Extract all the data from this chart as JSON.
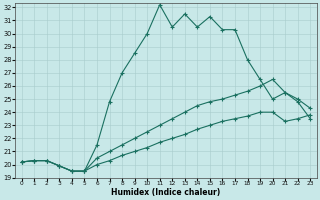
{
  "xlabel": "Humidex (Indice chaleur)",
  "bg_color": "#c8e8e8",
  "line_color": "#1a7060",
  "xlim": [
    -0.5,
    23.5
  ],
  "ylim": [
    19,
    32.3
  ],
  "xticks": [
    0,
    1,
    2,
    3,
    4,
    5,
    6,
    7,
    8,
    9,
    10,
    11,
    12,
    13,
    14,
    15,
    16,
    17,
    18,
    19,
    20,
    21,
    22,
    23
  ],
  "yticks": [
    19,
    20,
    21,
    22,
    23,
    24,
    25,
    26,
    27,
    28,
    29,
    30,
    31,
    32
  ],
  "line1_x": [
    0,
    1,
    2,
    3,
    4,
    5,
    6,
    7,
    8,
    9,
    10,
    11,
    12,
    13,
    14,
    15,
    16,
    17,
    18,
    19,
    20,
    21,
    22,
    23
  ],
  "line1_y": [
    20.2,
    20.3,
    20.3,
    19.9,
    19.5,
    19.5,
    21.5,
    24.8,
    27.0,
    28.5,
    30.0,
    32.2,
    30.5,
    31.5,
    30.5,
    31.3,
    30.3,
    30.3,
    28.0,
    26.5,
    25.0,
    25.5,
    24.8,
    23.5
  ],
  "line2_x": [
    0,
    1,
    2,
    3,
    4,
    5,
    6,
    7,
    8,
    9,
    10,
    11,
    12,
    13,
    14,
    15,
    16,
    17,
    18,
    19,
    20,
    21,
    22,
    23
  ],
  "line2_y": [
    20.2,
    20.3,
    20.3,
    19.9,
    19.5,
    19.5,
    20.5,
    21.0,
    21.5,
    22.0,
    22.5,
    23.0,
    23.5,
    24.0,
    24.5,
    24.8,
    25.0,
    25.3,
    25.6,
    26.0,
    26.5,
    25.5,
    25.0,
    24.3
  ],
  "line3_x": [
    0,
    1,
    2,
    3,
    4,
    5,
    6,
    7,
    8,
    9,
    10,
    11,
    12,
    13,
    14,
    15,
    16,
    17,
    18,
    19,
    20,
    21,
    22,
    23
  ],
  "line3_y": [
    20.2,
    20.3,
    20.3,
    19.9,
    19.5,
    19.5,
    20.0,
    20.3,
    20.7,
    21.0,
    21.3,
    21.7,
    22.0,
    22.3,
    22.7,
    23.0,
    23.3,
    23.5,
    23.7,
    24.0,
    24.0,
    23.3,
    23.5,
    23.8
  ]
}
